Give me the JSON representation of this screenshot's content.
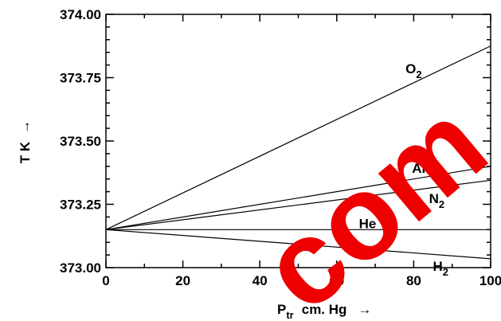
{
  "chart_data": {
    "type": "line",
    "x_ticks": [
      "0",
      "20",
      "40",
      "60",
      "80",
      "100"
    ],
    "y_ticks": [
      "373.00",
      "373.25",
      "373.50",
      "373.75",
      "374.00"
    ],
    "xlim": [
      0,
      100
    ],
    "ylim": [
      373.0,
      374.0
    ],
    "xlabel": {
      "main": "P",
      "sub": "tr",
      "rest": "cm. Hg",
      "arrow": "→"
    },
    "ylabel": {
      "main": "T K",
      "arrow": "→"
    },
    "series": [
      {
        "name": "O2",
        "label_main": "O",
        "label_sub": "2",
        "x": [
          0,
          100
        ],
        "y": [
          373.15,
          373.875
        ]
      },
      {
        "name": "Air",
        "label_main": "Air",
        "label_sub": "",
        "x": [
          0,
          100
        ],
        "y": [
          373.15,
          373.4
        ]
      },
      {
        "name": "N2",
        "label_main": "N",
        "label_sub": "2",
        "x": [
          0,
          100
        ],
        "y": [
          373.15,
          373.345
        ]
      },
      {
        "name": "He",
        "label_main": "He",
        "label_sub": "",
        "x": [
          0,
          100
        ],
        "y": [
          373.15,
          373.15
        ]
      },
      {
        "name": "H2",
        "label_main": "H",
        "label_sub": "2",
        "x": [
          0,
          100
        ],
        "y": [
          373.15,
          373.035
        ]
      }
    ],
    "grid": false,
    "line_color": "#000000"
  },
  "watermark": {
    "text": "com",
    "color": "#ee0000"
  }
}
